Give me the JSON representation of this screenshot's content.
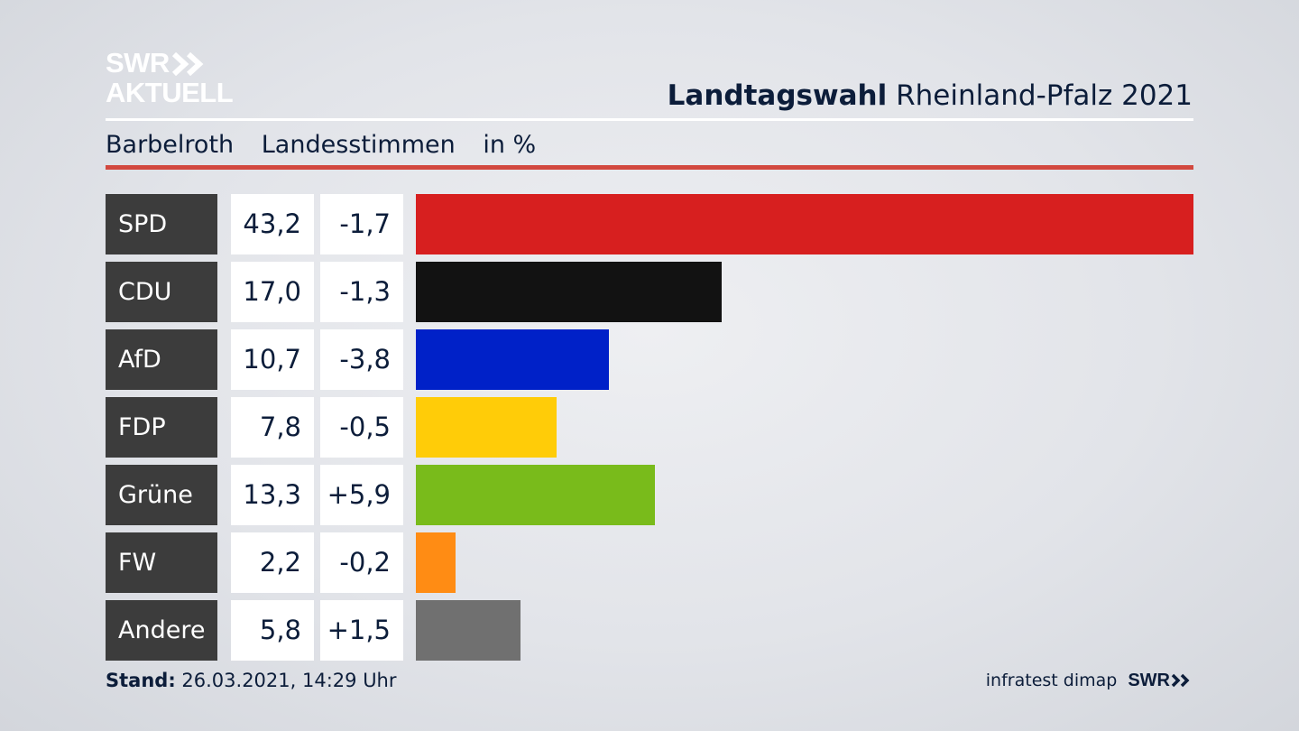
{
  "brand": {
    "line1": "SWR",
    "line2": "AKTUELL",
    "footer_logo": "SWR"
  },
  "header": {
    "title_bold": "Landtagswahl",
    "title_rest": "Rheinland-Pfalz 2021"
  },
  "subheader": {
    "place": "Barbelroth",
    "measure": "Landesstimmen",
    "unit": "in %"
  },
  "footer": {
    "stand_label": "Stand:",
    "stand_value": "26.03.2021, 14:29 Uhr",
    "source": "infratest dimap"
  },
  "colors": {
    "accent_rule": "#d2483f",
    "label_bg": "#3c3c3c"
  },
  "chart_data": {
    "type": "bar",
    "orientation": "horizontal",
    "categories": [
      "SPD",
      "CDU",
      "AfD",
      "FDP",
      "Grüne",
      "FW",
      "Andere"
    ],
    "values": [
      43.2,
      17.0,
      10.7,
      7.8,
      13.3,
      2.2,
      5.8
    ],
    "values_label": [
      "43,2",
      "17,0",
      "10,7",
      "7,8",
      "13,3",
      "2,2",
      "5,8"
    ],
    "change_label": [
      "-1,7",
      "-1,3",
      "-3,8",
      "-0,5",
      "+5,9",
      "-0,2",
      "+1,5"
    ],
    "change": [
      -1.7,
      -1.3,
      -3.8,
      -0.5,
      5.9,
      -0.2,
      1.5
    ],
    "colors": [
      "#d71f1f",
      "#121212",
      "#0021c8",
      "#ffcc08",
      "#79bb1b",
      "#ff8c14",
      "#707070"
    ],
    "xlim": [
      0,
      43.2
    ],
    "grid": false,
    "legend": "none"
  }
}
